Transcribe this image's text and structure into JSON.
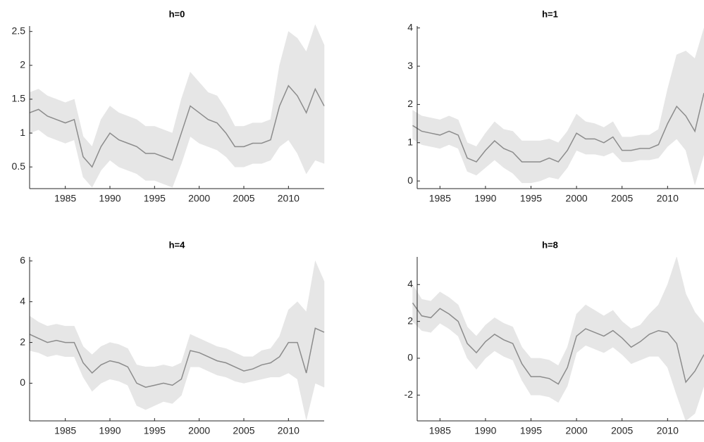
{
  "chart_data": [
    {
      "type": "line",
      "title": "h=0",
      "x": [
        1981,
        1982,
        1983,
        1984,
        1985,
        1986,
        1987,
        1988,
        1989,
        1990,
        1991,
        1992,
        1993,
        1994,
        1995,
        1996,
        1997,
        1998,
        1999,
        2000,
        2001,
        2002,
        2003,
        2004,
        2005,
        2006,
        2007,
        2008,
        2009,
        2010,
        2011,
        2012,
        2013,
        2014
      ],
      "values": [
        1.3,
        1.35,
        1.25,
        1.2,
        1.15,
        1.2,
        0.65,
        0.5,
        0.8,
        1.0,
        0.9,
        0.85,
        0.8,
        0.7,
        0.7,
        0.65,
        0.6,
        1.0,
        1.4,
        1.3,
        1.2,
        1.15,
        1.0,
        0.8,
        0.8,
        0.85,
        0.85,
        0.9,
        1.4,
        1.7,
        1.55,
        1.3,
        1.65,
        1.4
      ],
      "lower": [
        1.0,
        1.05,
        0.95,
        0.9,
        0.85,
        0.9,
        0.35,
        0.2,
        0.45,
        0.6,
        0.5,
        0.45,
        0.4,
        0.3,
        0.3,
        0.25,
        0.2,
        0.55,
        0.95,
        0.85,
        0.8,
        0.75,
        0.65,
        0.5,
        0.5,
        0.55,
        0.55,
        0.6,
        0.8,
        0.9,
        0.7,
        0.4,
        0.6,
        0.55
      ],
      "upper": [
        1.6,
        1.65,
        1.55,
        1.5,
        1.45,
        1.5,
        0.95,
        0.8,
        1.2,
        1.4,
        1.3,
        1.25,
        1.2,
        1.1,
        1.1,
        1.05,
        1.0,
        1.5,
        1.9,
        1.75,
        1.6,
        1.55,
        1.35,
        1.1,
        1.1,
        1.15,
        1.15,
        1.2,
        2.0,
        2.5,
        2.4,
        2.2,
        2.6,
        2.3
      ],
      "color": "#8c8c8c",
      "band_color": "#e6e6e6",
      "xlim": [
        1981,
        2014
      ],
      "xticks": [
        1985,
        1990,
        1995,
        2000,
        2005,
        2010
      ],
      "ylim": [
        0.18,
        2.58
      ],
      "yticks": [
        0.5,
        1,
        1.5,
        2,
        2.5
      ]
    },
    {
      "type": "line",
      "title": "h=1",
      "x": [
        1982,
        1983,
        1984,
        1985,
        1986,
        1987,
        1988,
        1989,
        1990,
        1991,
        1992,
        1993,
        1994,
        1995,
        1996,
        1997,
        1998,
        1999,
        2000,
        2001,
        2002,
        2003,
        2004,
        2005,
        2006,
        2007,
        2008,
        2009,
        2010,
        2011,
        2012,
        2013,
        2014
      ],
      "values": [
        1.45,
        1.3,
        1.25,
        1.2,
        1.3,
        1.2,
        0.6,
        0.5,
        0.8,
        1.05,
        0.85,
        0.75,
        0.5,
        0.5,
        0.5,
        0.6,
        0.5,
        0.8,
        1.25,
        1.1,
        1.1,
        1.0,
        1.15,
        0.8,
        0.8,
        0.85,
        0.85,
        0.95,
        1.5,
        1.95,
        1.7,
        1.3,
        2.3
      ],
      "lower": [
        1.1,
        0.95,
        0.9,
        0.85,
        0.95,
        0.85,
        0.25,
        0.15,
        0.35,
        0.55,
        0.35,
        0.2,
        -0.05,
        -0.05,
        0.0,
        0.1,
        0.05,
        0.35,
        0.8,
        0.7,
        0.7,
        0.65,
        0.75,
        0.5,
        0.5,
        0.55,
        0.55,
        0.6,
        0.9,
        1.1,
        0.8,
        -0.1,
        0.7
      ],
      "upper": [
        1.85,
        1.7,
        1.65,
        1.6,
        1.7,
        1.6,
        1.0,
        0.9,
        1.25,
        1.55,
        1.35,
        1.3,
        1.05,
        1.05,
        1.05,
        1.1,
        1.0,
        1.3,
        1.75,
        1.55,
        1.5,
        1.4,
        1.55,
        1.15,
        1.15,
        1.2,
        1.2,
        1.35,
        2.4,
        3.3,
        3.4,
        3.2,
        4.0
      ],
      "color": "#8c8c8c",
      "band_color": "#e6e6e6",
      "xlim": [
        1982.5,
        2014
      ],
      "xticks": [
        1985,
        1990,
        1995,
        2000,
        2005,
        2010
      ],
      "ylim": [
        -0.2,
        4.05
      ],
      "yticks": [
        0,
        1,
        2,
        3,
        4
      ]
    },
    {
      "type": "line",
      "title": "h=4",
      "x": [
        1981,
        1982,
        1983,
        1984,
        1985,
        1986,
        1987,
        1988,
        1989,
        1990,
        1991,
        1992,
        1993,
        1994,
        1995,
        1996,
        1997,
        1998,
        1999,
        2000,
        2001,
        2002,
        2003,
        2004,
        2005,
        2006,
        2007,
        2008,
        2009,
        2010,
        2011,
        2012,
        2013,
        2014
      ],
      "values": [
        2.4,
        2.2,
        2.0,
        2.1,
        2.0,
        2.0,
        1.0,
        0.5,
        0.9,
        1.1,
        1.0,
        0.8,
        0.0,
        -0.2,
        -0.1,
        0.0,
        -0.1,
        0.2,
        1.6,
        1.5,
        1.3,
        1.1,
        1.0,
        0.8,
        0.6,
        0.7,
        0.9,
        1.0,
        1.3,
        2.0,
        2.0,
        0.5,
        2.7,
        2.5
      ],
      "lower": [
        1.6,
        1.5,
        1.3,
        1.4,
        1.3,
        1.3,
        0.3,
        -0.4,
        0.0,
        0.2,
        0.1,
        -0.1,
        -1.1,
        -1.3,
        -1.1,
        -0.9,
        -1.0,
        -0.6,
        0.8,
        0.8,
        0.6,
        0.4,
        0.3,
        0.1,
        0.0,
        0.1,
        0.2,
        0.3,
        0.3,
        0.5,
        0.2,
        -1.8,
        0.0,
        -0.2
      ],
      "upper": [
        3.3,
        3.0,
        2.8,
        2.9,
        2.8,
        2.8,
        1.8,
        1.4,
        1.8,
        2.0,
        1.9,
        1.7,
        0.9,
        0.8,
        0.8,
        0.9,
        0.8,
        1.0,
        2.4,
        2.2,
        2.0,
        1.8,
        1.7,
        1.5,
        1.3,
        1.3,
        1.6,
        1.7,
        2.3,
        3.6,
        4.0,
        3.5,
        6.0,
        5.0
      ],
      "color": "#8c8c8c",
      "band_color": "#e6e6e6",
      "xlim": [
        1981,
        2014
      ],
      "xticks": [
        1985,
        1990,
        1995,
        2000,
        2005,
        2010
      ],
      "ylim": [
        -1.85,
        6.2
      ],
      "yticks": [
        0,
        2,
        4,
        6
      ]
    },
    {
      "type": "line",
      "title": "h=8",
      "x": [
        1982,
        1983,
        1984,
        1985,
        1986,
        1987,
        1988,
        1989,
        1990,
        1991,
        1992,
        1993,
        1994,
        1995,
        1996,
        1997,
        1998,
        1999,
        2000,
        2001,
        2002,
        2003,
        2004,
        2005,
        2006,
        2007,
        2008,
        2009,
        2010,
        2011,
        2012,
        2013,
        2014
      ],
      "values": [
        3.0,
        2.3,
        2.2,
        2.7,
        2.4,
        2.0,
        0.8,
        0.3,
        0.9,
        1.3,
        1.0,
        0.8,
        -0.3,
        -1.0,
        -1.0,
        -1.1,
        -1.4,
        -0.5,
        1.2,
        1.6,
        1.4,
        1.2,
        1.5,
        1.1,
        0.6,
        0.9,
        1.3,
        1.5,
        1.4,
        0.8,
        -1.3,
        -0.7,
        0.2
      ],
      "lower": [
        2.0,
        1.5,
        1.4,
        1.9,
        1.6,
        1.2,
        0.0,
        -0.6,
        0.0,
        0.4,
        0.1,
        -0.1,
        -1.2,
        -2.0,
        -2.0,
        -2.1,
        -2.4,
        -1.5,
        0.3,
        0.7,
        0.5,
        0.3,
        0.6,
        0.2,
        -0.3,
        -0.1,
        0.1,
        0.1,
        -0.5,
        -2.0,
        -3.4,
        -3.0,
        -1.5
      ],
      "upper": [
        4.0,
        3.2,
        3.1,
        3.6,
        3.3,
        2.9,
        1.7,
        1.2,
        1.8,
        2.2,
        1.9,
        1.7,
        0.6,
        0.0,
        0.0,
        -0.1,
        -0.4,
        0.6,
        2.4,
        2.9,
        2.6,
        2.3,
        2.6,
        2.0,
        1.6,
        1.8,
        2.4,
        2.9,
        4.0,
        5.5,
        3.5,
        2.5,
        1.9
      ],
      "color": "#8c8c8c",
      "band_color": "#e6e6e6",
      "xlim": [
        1982.5,
        2014
      ],
      "xticks": [
        1985,
        1990,
        1995,
        2000,
        2005,
        2010
      ],
      "ylim": [
        -3.4,
        5.5
      ],
      "yticks": [
        -2,
        0,
        2,
        4
      ]
    }
  ]
}
